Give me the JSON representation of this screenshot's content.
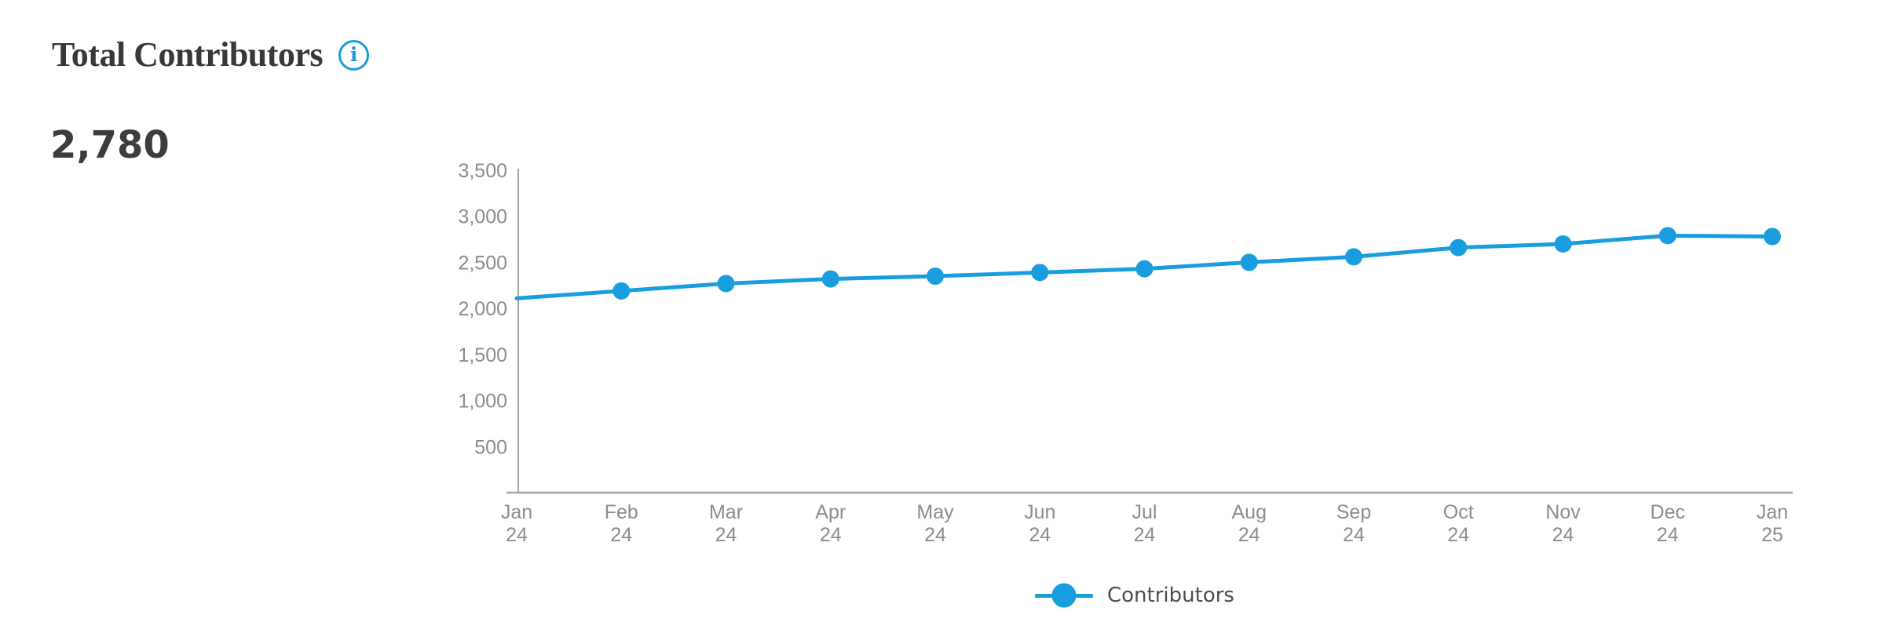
{
  "card": {
    "title": "Total Contributors",
    "kpi_value": "2,780",
    "info_icon_glyph": "i"
  },
  "legend": {
    "label": "Contributors"
  },
  "colors": {
    "line": "#189ede",
    "accent": "#1b9cd8",
    "axis_line": "#a6a6a6",
    "tick_text": "#8c8c8c",
    "title_text": "#383838",
    "kpi_text": "#3d3d3d",
    "legend_text": "#4d4d4d"
  },
  "chart_data": {
    "type": "line",
    "title": "Total Contributors",
    "xlabel": "",
    "ylabel": "",
    "categories": [
      "Jan 24",
      "Feb 24",
      "Mar 24",
      "Apr 24",
      "May 24",
      "Jun 24",
      "Jul 24",
      "Aug 24",
      "Sep 24",
      "Oct 24",
      "Nov 24",
      "Dec 24",
      "Jan 25"
    ],
    "series": [
      {
        "name": "Contributors",
        "values": [
          2110,
          2190,
          2270,
          2320,
          2350,
          2390,
          2430,
          2500,
          2560,
          2660,
          2700,
          2790,
          2780
        ]
      }
    ],
    "ylim": [
      0,
      3500
    ],
    "yticks": [
      500,
      1000,
      1500,
      2000,
      2500,
      3000,
      3500
    ],
    "grid": false,
    "marker": "circle",
    "legend_position": "bottom"
  }
}
